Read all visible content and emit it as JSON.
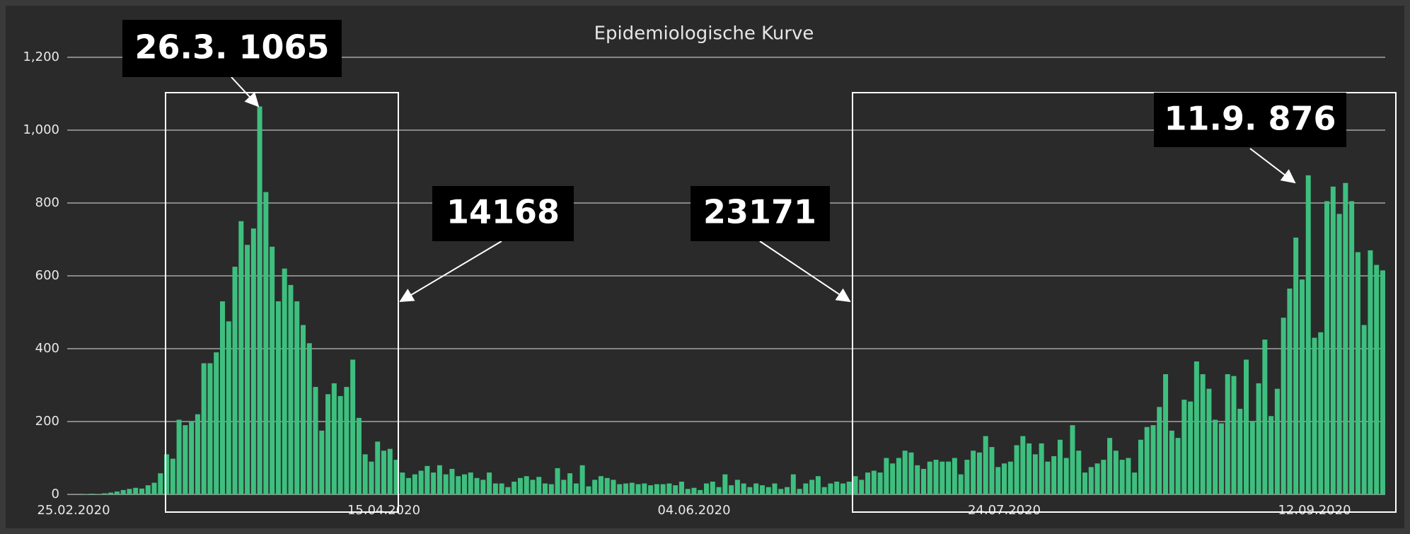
{
  "chart_data": {
    "type": "bar",
    "title": "Epidemiologische Kurve",
    "color": "#3ebf7f",
    "ylim": [
      0,
      1200
    ],
    "yticks": [
      0,
      200,
      400,
      600,
      800,
      {
        "value": 1000,
        "label": "1,000"
      },
      {
        "value": 1200,
        "label": "1,200"
      }
    ],
    "grid": true,
    "categories": [
      "25.02.2020",
      null,
      null,
      null,
      null,
      null,
      null,
      null,
      null,
      null,
      null,
      null,
      null,
      null,
      null,
      null,
      null,
      null,
      null,
      null,
      null,
      null,
      null,
      null,
      null,
      null,
      null,
      null,
      null,
      null,
      null,
      null,
      null,
      null,
      null,
      null,
      null,
      null,
      null,
      null,
      null,
      null,
      null,
      null,
      null,
      null,
      null,
      null,
      null,
      null,
      "15.04.2020",
      null,
      null,
      null,
      null,
      null,
      null,
      null,
      null,
      null,
      null,
      null,
      null,
      null,
      null,
      null,
      null,
      null,
      null,
      null,
      null,
      null,
      null,
      null,
      null,
      null,
      null,
      null,
      null,
      null,
      null,
      null,
      null,
      null,
      null,
      null,
      null,
      null,
      null,
      null,
      null,
      null,
      null,
      null,
      null,
      null,
      null,
      null,
      null,
      null,
      "04.06.2020",
      null,
      null,
      null,
      null,
      null,
      null,
      null,
      null,
      null,
      null,
      null,
      null,
      null,
      null,
      null,
      null,
      null,
      null,
      null,
      null,
      null,
      null,
      null,
      null,
      null,
      null,
      null,
      null,
      null,
      null,
      null,
      null,
      null,
      null,
      null,
      null,
      null,
      null,
      null,
      null,
      null,
      null,
      null,
      null,
      null,
      null,
      null,
      null,
      null,
      "24.07.2020",
      null,
      null,
      null,
      null,
      null,
      null,
      null,
      null,
      null,
      null,
      null,
      null,
      null,
      null,
      null,
      null,
      null,
      null,
      null,
      null,
      null,
      null,
      null,
      null,
      null,
      null,
      null,
      null,
      null,
      null,
      null,
      null,
      null,
      null,
      null,
      null,
      null,
      null,
      null,
      null,
      null,
      null,
      null,
      null,
      null,
      null,
      null,
      null,
      null,
      "12.09.2020",
      null,
      null,
      null,
      null,
      null,
      null,
      null,
      null,
      null,
      null,
      null
    ],
    "values": [
      0,
      0,
      1,
      2,
      1,
      3,
      5,
      8,
      12,
      15,
      18,
      16,
      25,
      32,
      58,
      110,
      98,
      205,
      190,
      200,
      220,
      360,
      360,
      390,
      530,
      475,
      625,
      750,
      685,
      730,
      1065,
      830,
      680,
      530,
      620,
      575,
      530,
      465,
      415,
      295,
      175,
      275,
      305,
      270,
      295,
      370,
      210,
      110,
      90,
      145,
      120,
      125,
      95,
      60,
      45,
      55,
      65,
      78,
      60,
      80,
      55,
      70,
      50,
      55,
      60,
      45,
      40,
      60,
      30,
      30,
      20,
      35,
      45,
      50,
      40,
      48,
      30,
      28,
      72,
      40,
      58,
      30,
      80,
      22,
      40,
      50,
      45,
      40,
      28,
      30,
      32,
      28,
      30,
      25,
      28,
      28,
      30,
      25,
      35,
      15,
      18,
      12,
      30,
      35,
      20,
      55,
      25,
      40,
      30,
      20,
      30,
      25,
      20,
      30,
      15,
      20,
      55,
      15,
      30,
      40,
      50,
      20,
      30,
      35,
      30,
      35,
      50,
      40,
      60,
      65,
      60,
      100,
      85,
      100,
      120,
      115,
      80,
      70,
      90,
      95,
      90,
      90,
      100,
      55,
      95,
      120,
      115,
      160,
      130,
      75,
      85,
      90,
      135,
      160,
      140,
      110,
      140,
      90,
      105,
      150,
      100,
      190,
      120,
      60,
      75,
      85,
      95,
      155,
      120,
      95,
      100,
      60,
      150,
      185,
      190,
      240,
      330,
      175,
      155,
      260,
      255,
      365,
      330,
      290,
      205,
      195,
      330,
      325,
      235,
      370,
      200,
      305,
      425,
      215,
      290,
      485,
      565,
      705,
      590,
      876,
      430,
      445,
      805,
      845,
      770,
      855,
      805,
      665,
      465,
      670,
      630,
      615
    ],
    "annotations": [
      "26.3. 1065",
      "14168",
      "23171",
      "11.9. 876"
    ]
  }
}
